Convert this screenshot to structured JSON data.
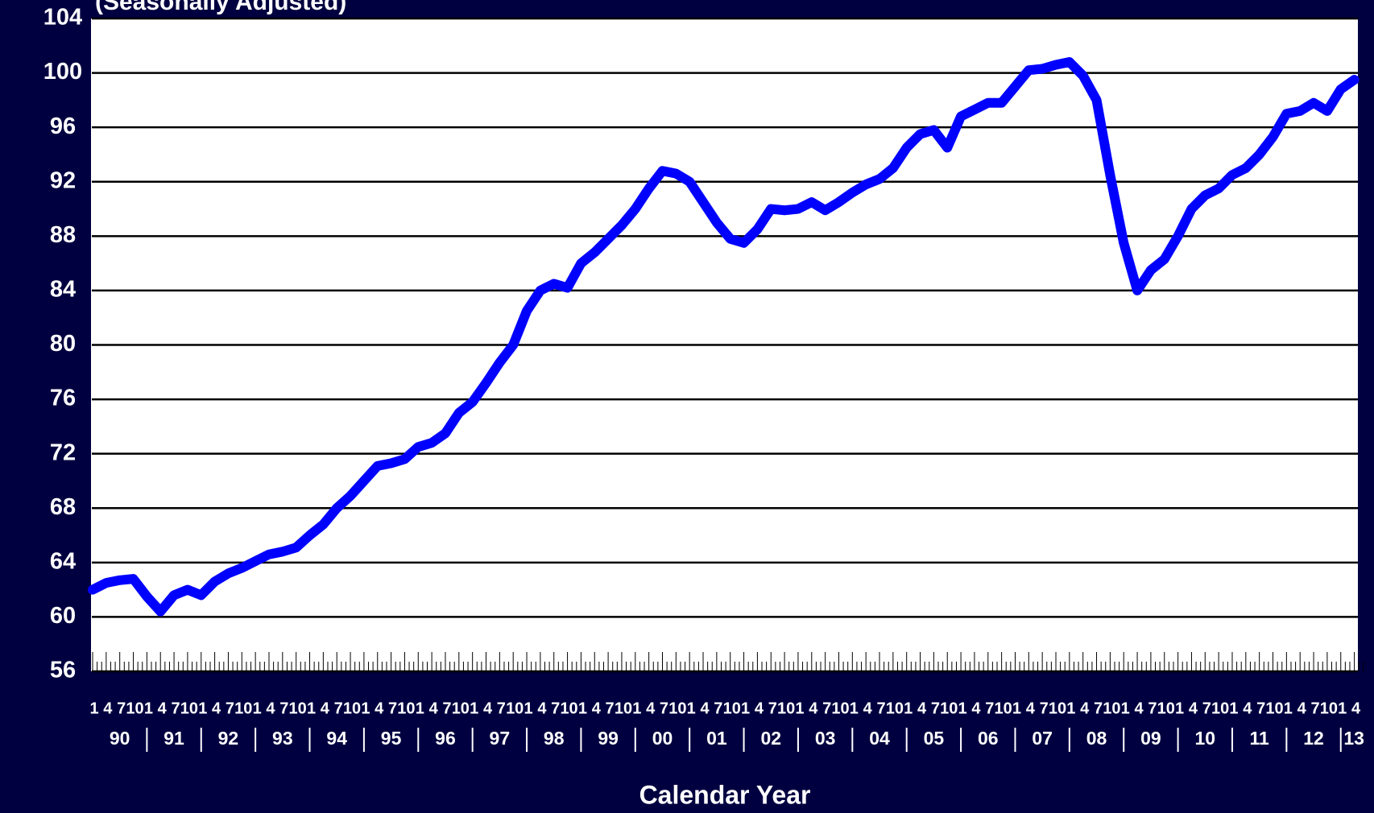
{
  "chart_data": {
    "type": "line",
    "title": "(Seasonally Adjusted)",
    "x_label": "Calendar Year",
    "categories": [
      "1",
      "4",
      "7",
      "10",
      "1",
      "4",
      "7",
      "10",
      "1",
      "4",
      "7",
      "10",
      "1",
      "4",
      "7",
      "10",
      "1",
      "4",
      "7",
      "10",
      "1",
      "4",
      "7",
      "10",
      "1",
      "4",
      "7",
      "10",
      "1",
      "4",
      "7",
      "10",
      "1",
      "4",
      "7",
      "10",
      "1",
      "4",
      "7",
      "10",
      "1",
      "4",
      "7",
      "10",
      "1",
      "4",
      "7",
      "10",
      "1",
      "4",
      "7",
      "10",
      "1",
      "4",
      "7",
      "10",
      "1",
      "4",
      "7",
      "10",
      "1",
      "4",
      "7",
      "10",
      "1",
      "4",
      "7",
      "10",
      "1",
      "4",
      "7",
      "10",
      "1",
      "4",
      "7",
      "10",
      "1",
      "4",
      "7",
      "10",
      "1",
      "4",
      "7",
      "10",
      "1",
      "4",
      "7",
      "10",
      "1",
      "4",
      "7",
      "10",
      "1",
      "4"
    ],
    "years": [
      "90",
      "91",
      "92",
      "93",
      "94",
      "95",
      "96",
      "97",
      "98",
      "99",
      "00",
      "01",
      "02",
      "03",
      "04",
      "05",
      "06",
      "07",
      "08",
      "09",
      "10",
      "11",
      "12",
      "13"
    ],
    "series": [
      {
        "color": "#0000ff",
        "values": [
          62.0,
          62.5,
          62.7,
          62.8,
          61.5,
          60.4,
          61.6,
          62.0,
          61.6,
          62.6,
          63.2,
          63.6,
          64.1,
          64.6,
          64.8,
          65.1,
          66.0,
          66.8,
          68.0,
          68.9,
          70.0,
          71.1,
          71.3,
          71.6,
          72.5,
          72.8,
          73.5,
          75.0,
          75.8,
          77.2,
          78.7,
          80.0,
          82.5,
          84.0,
          84.5,
          84.2,
          86.0,
          86.8,
          87.8,
          88.8,
          90.0,
          91.5,
          92.8,
          92.6,
          92.0,
          90.5,
          89.0,
          87.8,
          87.5,
          88.5,
          90.0,
          89.9,
          90.0,
          90.5,
          89.9,
          90.5,
          91.2,
          91.8,
          92.2,
          93.0,
          94.5,
          95.5,
          95.8,
          94.5,
          96.8,
          97.3,
          97.8,
          97.8,
          99.0,
          100.2,
          100.3,
          100.6,
          100.8,
          99.8,
          98.0,
          92.5,
          87.5,
          84.0,
          85.5,
          86.3,
          88.0,
          90.0,
          91.0,
          91.5,
          92.5,
          93.0,
          94.0,
          95.3,
          97.0,
          97.2,
          97.8,
          97.2,
          98.8,
          99.5
        ]
      }
    ],
    "ylim": [
      56,
      104
    ],
    "yticks": [
      56,
      60,
      64,
      68,
      72,
      76,
      80,
      84,
      88,
      92,
      96,
      100,
      104
    ],
    "grid": true
  }
}
